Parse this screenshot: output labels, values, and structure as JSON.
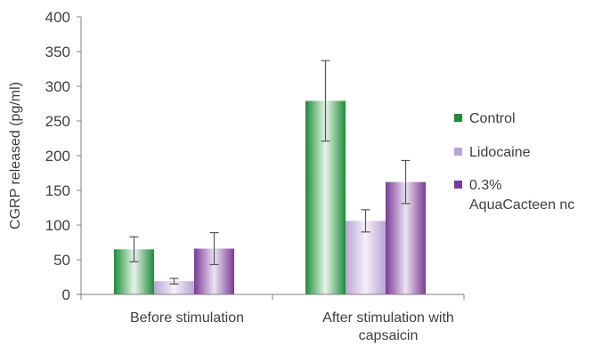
{
  "chart_data": {
    "type": "bar",
    "ylabel": "CGRP released (pg/ml)",
    "xlabel": "",
    "ylim": [
      0,
      400
    ],
    "yticks": [
      0,
      50,
      100,
      150,
      200,
      250,
      300,
      350,
      400
    ],
    "categories": [
      {
        "line1": "Before stimulation",
        "line2": ""
      },
      {
        "line1": "After stimulation with",
        "line2": "capsaicin"
      }
    ],
    "series": [
      {
        "name": {
          "line1": "Control",
          "line2": ""
        },
        "color": "#1e8c3a",
        "values": [
          65,
          279
        ],
        "errors": [
          18,
          58
        ]
      },
      {
        "name": {
          "line1": "Lidocaine",
          "line2": ""
        },
        "color": "#b9a4d4",
        "values": [
          19,
          106
        ],
        "errors": [
          4,
          16
        ]
      },
      {
        "name": {
          "line1": "0.3%",
          "line2": "AquaCacteen nc"
        },
        "color": "#7a3a96",
        "values": [
          66,
          162
        ],
        "errors": [
          23,
          31
        ]
      }
    ],
    "grid": false,
    "legend": "right"
  }
}
